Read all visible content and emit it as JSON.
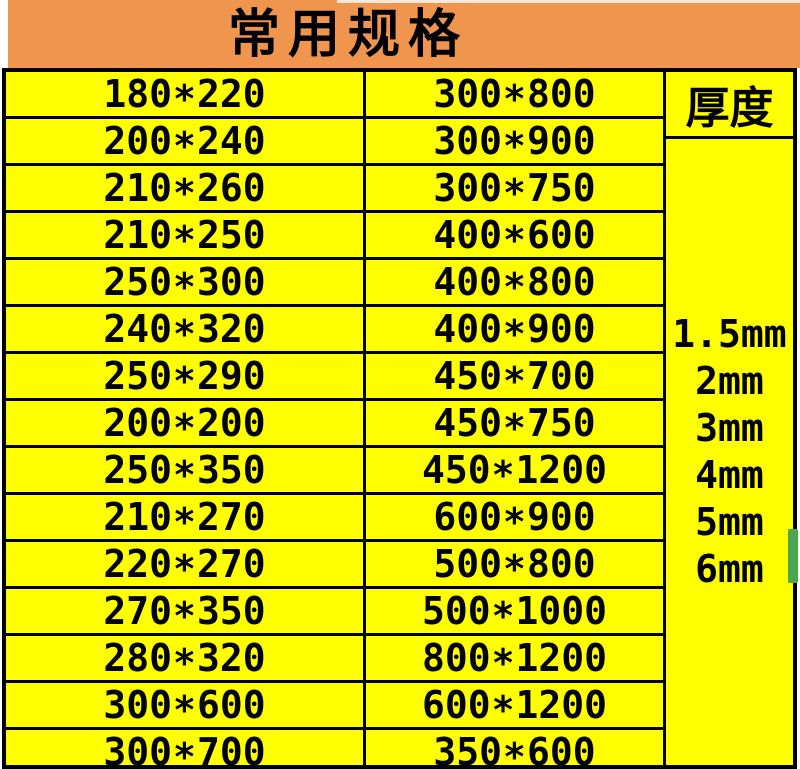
{
  "header": {
    "title": "常用规格"
  },
  "table": {
    "rows": [
      {
        "col1": "180*220",
        "col2": "300*800"
      },
      {
        "col1": "200*240",
        "col2": "300*900"
      },
      {
        "col1": "210*260",
        "col2": "300*750"
      },
      {
        "col1": "210*250",
        "col2": "400*600"
      },
      {
        "col1": "250*300",
        "col2": "400*800"
      },
      {
        "col1": "240*320",
        "col2": "400*900"
      },
      {
        "col1": "250*290",
        "col2": "450*700"
      },
      {
        "col1": "200*200",
        "col2": "450*750"
      },
      {
        "col1": "250*350",
        "col2": "450*1200"
      },
      {
        "col1": "210*270",
        "col2": "600*900"
      },
      {
        "col1": "220*270",
        "col2": "500*800"
      },
      {
        "col1": "270*350",
        "col2": "500*1000"
      },
      {
        "col1": "280*320",
        "col2": "800*1200"
      },
      {
        "col1": "300*600",
        "col2": "600*1200"
      },
      {
        "col1": "300*700",
        "col2": "350*600"
      }
    ],
    "thickness": {
      "header": "厚度",
      "values": [
        "1.5mm",
        "2mm",
        "3mm",
        "4mm",
        "5mm",
        "6mm"
      ]
    }
  },
  "colors": {
    "header_bg": "#F0954E",
    "cell_bg": "#FFFF00",
    "border": "#000000",
    "scroll_thumb": "#4AA64F"
  }
}
